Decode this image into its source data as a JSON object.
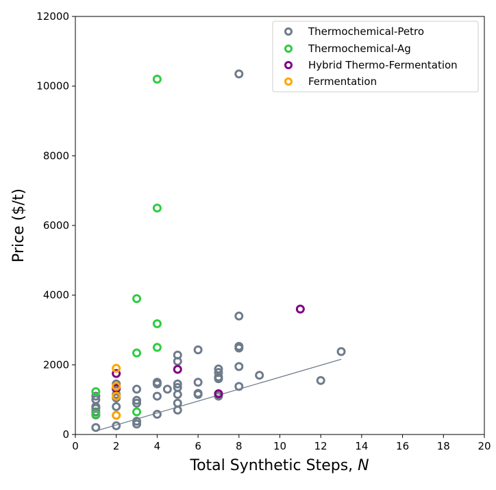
{
  "chart_data": {
    "type": "scatter",
    "xlabel_text": "Total Synthetic Steps, ",
    "xlabel_var": "N",
    "ylabel": "Price ($/t)",
    "xlim": [
      0,
      20
    ],
    "ylim": [
      0,
      12000
    ],
    "xticks": [
      0,
      2,
      4,
      6,
      8,
      10,
      12,
      14,
      16,
      18,
      20
    ],
    "yticks": [
      0,
      2000,
      4000,
      6000,
      8000,
      10000,
      12000
    ],
    "grid": false,
    "legend_position": "top-right",
    "series": [
      {
        "name": "Thermochemical-Petro",
        "color": "#6e7b8b",
        "points": [
          [
            1,
            200
          ],
          [
            1,
            560
          ],
          [
            1,
            650
          ],
          [
            1,
            750
          ],
          [
            1,
            800
          ],
          [
            1,
            1000
          ],
          [
            1,
            1100
          ],
          [
            2,
            250
          ],
          [
            2,
            550
          ],
          [
            2,
            800
          ],
          [
            2,
            1050
          ],
          [
            2,
            1150
          ],
          [
            2,
            1300
          ],
          [
            2,
            1450
          ],
          [
            3,
            300
          ],
          [
            3,
            380
          ],
          [
            3,
            900
          ],
          [
            3,
            980
          ],
          [
            3,
            1300
          ],
          [
            4,
            580
          ],
          [
            4,
            1100
          ],
          [
            4,
            1450
          ],
          [
            4,
            1500
          ],
          [
            4.5,
            1300
          ],
          [
            5,
            700
          ],
          [
            5,
            900
          ],
          [
            5,
            1150
          ],
          [
            5,
            1350
          ],
          [
            5,
            1450
          ],
          [
            5,
            2100
          ],
          [
            5,
            2280
          ],
          [
            6,
            1150
          ],
          [
            6,
            1180
          ],
          [
            6,
            1500
          ],
          [
            6,
            2430
          ],
          [
            7,
            1100
          ],
          [
            7,
            1150
          ],
          [
            7,
            1600
          ],
          [
            7,
            1650
          ],
          [
            7,
            1780
          ],
          [
            7,
            1880
          ],
          [
            8,
            1380
          ],
          [
            8,
            1950
          ],
          [
            8,
            2480
          ],
          [
            8,
            2530
          ],
          [
            8,
            3400
          ],
          [
            8,
            10350
          ],
          [
            9,
            1700
          ],
          [
            12,
            1550
          ],
          [
            13,
            2380
          ]
        ]
      },
      {
        "name": "Thermochemical-Ag",
        "color": "#2ecc40",
        "points": [
          [
            1,
            580
          ],
          [
            1,
            1230
          ],
          [
            3,
            650
          ],
          [
            3,
            2340
          ],
          [
            3,
            3900
          ],
          [
            4,
            2500
          ],
          [
            4,
            3180
          ],
          [
            4,
            6500
          ],
          [
            4,
            10200
          ]
        ]
      },
      {
        "name": "Hybrid Thermo-Fermentation",
        "color": "#800080",
        "points": [
          [
            2,
            1330
          ],
          [
            2,
            1750
          ],
          [
            5,
            1870
          ],
          [
            7,
            1170
          ],
          [
            11,
            3600
          ]
        ]
      },
      {
        "name": "Fermentation",
        "color": "#ffa500",
        "points": [
          [
            2,
            550
          ],
          [
            2,
            1100
          ],
          [
            2,
            1380
          ],
          [
            2,
            1900
          ]
        ]
      }
    ],
    "trendline": {
      "color": "#6e7b8b",
      "points": [
        [
          1,
          100
        ],
        [
          13,
          2160
        ]
      ]
    }
  }
}
